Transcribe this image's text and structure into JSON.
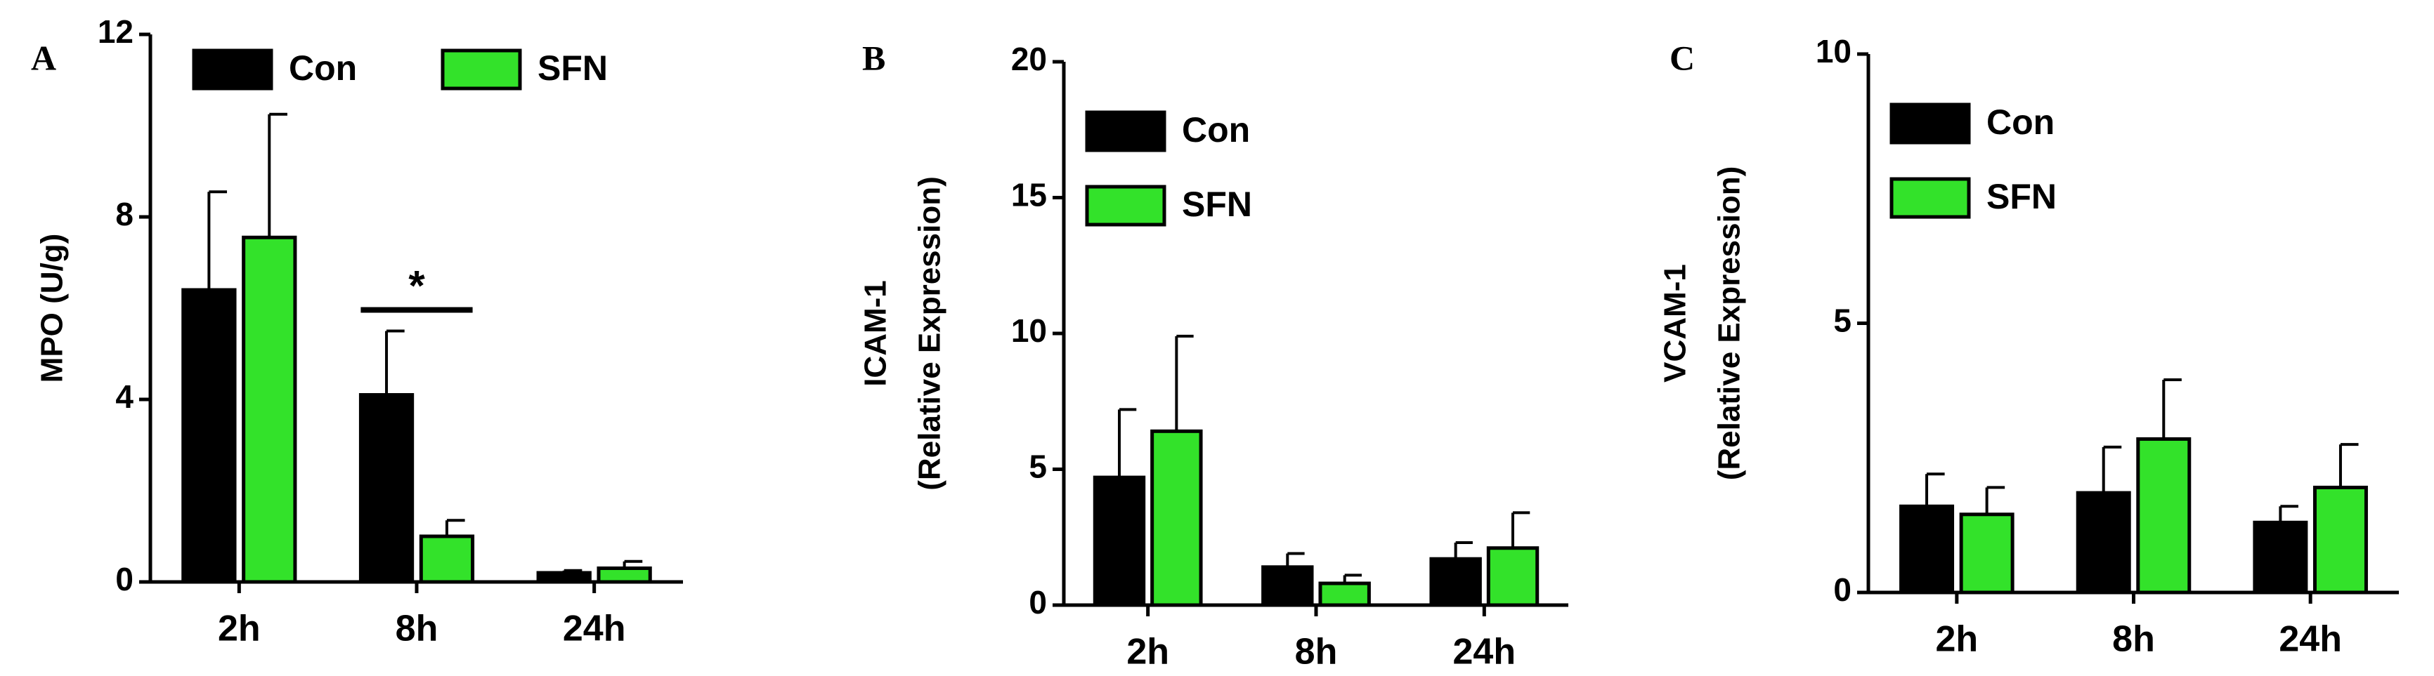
{
  "chart_data": [
    {
      "type": "bar",
      "panel_label": "A",
      "ylabel": [
        "MPO (U/g)"
      ],
      "categories": [
        "2h",
        "8h",
        "24h"
      ],
      "series": [
        {
          "name": "Con",
          "color": "#000000",
          "values": [
            6.4,
            4.1,
            0.2
          ],
          "errors": [
            2.15,
            1.4,
            0.05
          ]
        },
        {
          "name": "SFN",
          "color": "#33e22a",
          "values": [
            7.55,
            1.0,
            0.3
          ],
          "errors": [
            2.7,
            0.35,
            0.15
          ]
        }
      ],
      "ylim": [
        0,
        12
      ],
      "yticks": [
        0,
        4,
        8,
        12
      ],
      "legend": "upper left",
      "legend_orientation": "horizontal",
      "annotations": [
        {
          "text": "*",
          "category": 1
        }
      ]
    },
    {
      "type": "bar",
      "panel_label": "B",
      "ylabel": [
        "ICAM-1",
        "(Relative Expression)"
      ],
      "categories": [
        "2h",
        "8h",
        "24h"
      ],
      "series": [
        {
          "name": "Con",
          "color": "#000000",
          "values": [
            4.7,
            1.4,
            1.7
          ],
          "errors": [
            2.5,
            0.5,
            0.6
          ]
        },
        {
          "name": "SFN",
          "color": "#33e22a",
          "values": [
            6.4,
            0.8,
            2.1
          ],
          "errors": [
            3.5,
            0.3,
            1.3
          ]
        }
      ],
      "ylim": [
        0,
        20
      ],
      "yticks": [
        0,
        5,
        10,
        15,
        20
      ],
      "legend": "upper left",
      "legend_orientation": "vertical"
    },
    {
      "type": "bar",
      "panel_label": "C",
      "ylabel": [
        "VCAM-1",
        "(Relative Expression)"
      ],
      "categories": [
        "2h",
        "8h",
        "24h"
      ],
      "series": [
        {
          "name": "Con",
          "color": "#000000",
          "values": [
            1.6,
            1.85,
            1.3
          ],
          "errors": [
            0.6,
            0.85,
            0.3
          ]
        },
        {
          "name": "SFN",
          "color": "#33e22a",
          "values": [
            1.45,
            2.85,
            1.95
          ],
          "errors": [
            0.5,
            1.1,
            0.8
          ]
        }
      ],
      "ylim": [
        0,
        10
      ],
      "yticks": [
        0,
        5,
        10
      ],
      "legend": "upper left",
      "legend_orientation": "vertical"
    }
  ]
}
